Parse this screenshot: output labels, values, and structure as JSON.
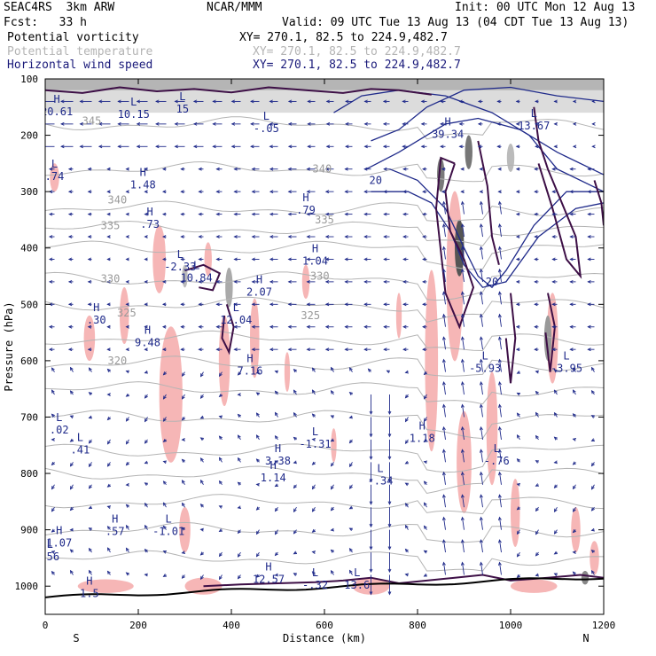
{
  "header": {
    "model": "SEAC4RS  3km ARW",
    "center": "NCAR/MMM",
    "init": "Init: 00 UTC Mon 12 Aug 13",
    "fcst": "Fcst:   33 h",
    "valid": "Valid: 09 UTC Tue 13 Aug 13 (04 CDT Tue 13 Aug 13)",
    "fields": [
      {
        "name": "Potential vorticity",
        "xy": "XY= 270.1, 82.5 to 224.9,482.7",
        "color": "#000000"
      },
      {
        "name": "Potential temperature",
        "xy": "XY= 270.1, 82.5 to 224.9,482.7",
        "color": "#b4b4b4"
      },
      {
        "name": "Horizontal wind speed",
        "xy": "XY= 270.1, 82.5 to 224.9,482.7",
        "color": "#1a1a7a"
      }
    ]
  },
  "chart_data": {
    "type": "cross-section",
    "xlabel": "Distance (km)",
    "ylabel": "Pressure (hPa)",
    "xlim": [
      0,
      1200
    ],
    "ylim": [
      1050,
      100
    ],
    "x_ticks": [
      0,
      200,
      400,
      600,
      800,
      1000,
      1200
    ],
    "y_ticks": [
      100,
      200,
      300,
      400,
      500,
      600,
      700,
      800,
      900,
      1000
    ],
    "x_end_labels": {
      "left": "S",
      "right": "N"
    },
    "theta_contours": [
      {
        "label": "345",
        "p": 175,
        "x": 100
      },
      {
        "label": "340",
        "p": 315,
        "x": 155
      },
      {
        "label": "335",
        "p": 360,
        "x": 140
      },
      {
        "label": "330",
        "p": 455,
        "x": 140
      },
      {
        "label": "325",
        "p": 515,
        "x": 175
      },
      {
        "label": "320",
        "p": 600,
        "x": 155
      }
    ],
    "theta_labels_extra": [
      {
        "text": "340",
        "x": 595,
        "p": 260
      },
      {
        "text": "335",
        "x": 600,
        "p": 350
      },
      {
        "text": "330",
        "x": 590,
        "p": 450
      },
      {
        "text": "325",
        "x": 570,
        "p": 520
      }
    ],
    "speed_labels": [
      {
        "text": "20",
        "x": 710,
        "p": 280
      },
      {
        "text": "20",
        "x": 960,
        "p": 460
      }
    ],
    "extrema": [
      {
        "type": "H",
        "value": "20.61",
        "x": 25,
        "p": 155
      },
      {
        "type": "L",
        "value": "10.15",
        "x": 190,
        "p": 160
      },
      {
        "type": "L",
        "value": "15",
        "x": 295,
        "p": 150
      },
      {
        "type": "L",
        "value": "-.05",
        "x": 475,
        "p": 185
      },
      {
        "type": "H",
        "value": "39.34",
        "x": 865,
        "p": 195
      },
      {
        "type": "L",
        "value": "13.67",
        "x": 1050,
        "p": 180
      },
      {
        "type": "L",
        "value": ".74",
        "x": 20,
        "p": 270
      },
      {
        "type": "H",
        "value": "1.48",
        "x": 210,
        "p": 285
      },
      {
        "type": "H",
        "value": ".79",
        "x": 560,
        "p": 330
      },
      {
        "type": "H",
        "value": ".73",
        "x": 225,
        "p": 355
      },
      {
        "type": "L",
        "value": "-2.33",
        "x": 290,
        "p": 430
      },
      {
        "type": "H",
        "value": "1.04",
        "x": 580,
        "p": 420
      },
      {
        "type": "L",
        "value": "10.84",
        "x": 325,
        "p": 450
      },
      {
        "type": "H",
        "value": "2.07",
        "x": 460,
        "p": 475
      },
      {
        "type": "H",
        "value": ".30",
        "x": 110,
        "p": 525
      },
      {
        "type": "L",
        "value": "12.04",
        "x": 410,
        "p": 525
      },
      {
        "type": "H",
        "value": "9.48",
        "x": 220,
        "p": 565
      },
      {
        "type": "H",
        "value": "7.16",
        "x": 440,
        "p": 615
      },
      {
        "type": "L",
        "value": "-5.93",
        "x": 945,
        "p": 610
      },
      {
        "type": "L",
        "value": "-3.95",
        "x": 1120,
        "p": 610
      },
      {
        "type": "L",
        "value": ".02",
        "x": 30,
        "p": 720
      },
      {
        "type": "H",
        "value": "1.18",
        "x": 810,
        "p": 735
      },
      {
        "type": "L",
        "value": "-1.31",
        "x": 580,
        "p": 745
      },
      {
        "type": "L",
        "value": ".41",
        "x": 75,
        "p": 755
      },
      {
        "type": "H",
        "value": "3.38",
        "x": 500,
        "p": 775
      },
      {
        "type": "L",
        "value": "-.76",
        "x": 970,
        "p": 775
      },
      {
        "type": "H",
        "value": "1.14",
        "x": 490,
        "p": 805
      },
      {
        "type": "L",
        "value": "-.34",
        "x": 720,
        "p": 810
      },
      {
        "type": "H",
        "value": ".57",
        "x": 150,
        "p": 900
      },
      {
        "type": "L",
        "value": "-1.01",
        "x": 265,
        "p": 900
      },
      {
        "type": "H",
        "value": "1.07",
        "x": 30,
        "p": 920
      },
      {
        "type": "L",
        "value": ".56",
        "x": 10,
        "p": 945
      },
      {
        "type": "H",
        "value": "12.57",
        "x": 480,
        "p": 985
      },
      {
        "type": "L",
        "value": "-.32",
        "x": 580,
        "p": 995
      },
      {
        "type": "L",
        "value": "13.6",
        "x": 670,
        "p": 995
      },
      {
        "type": "H",
        "value": "1.5",
        "x": 95,
        "p": 1010
      }
    ]
  }
}
